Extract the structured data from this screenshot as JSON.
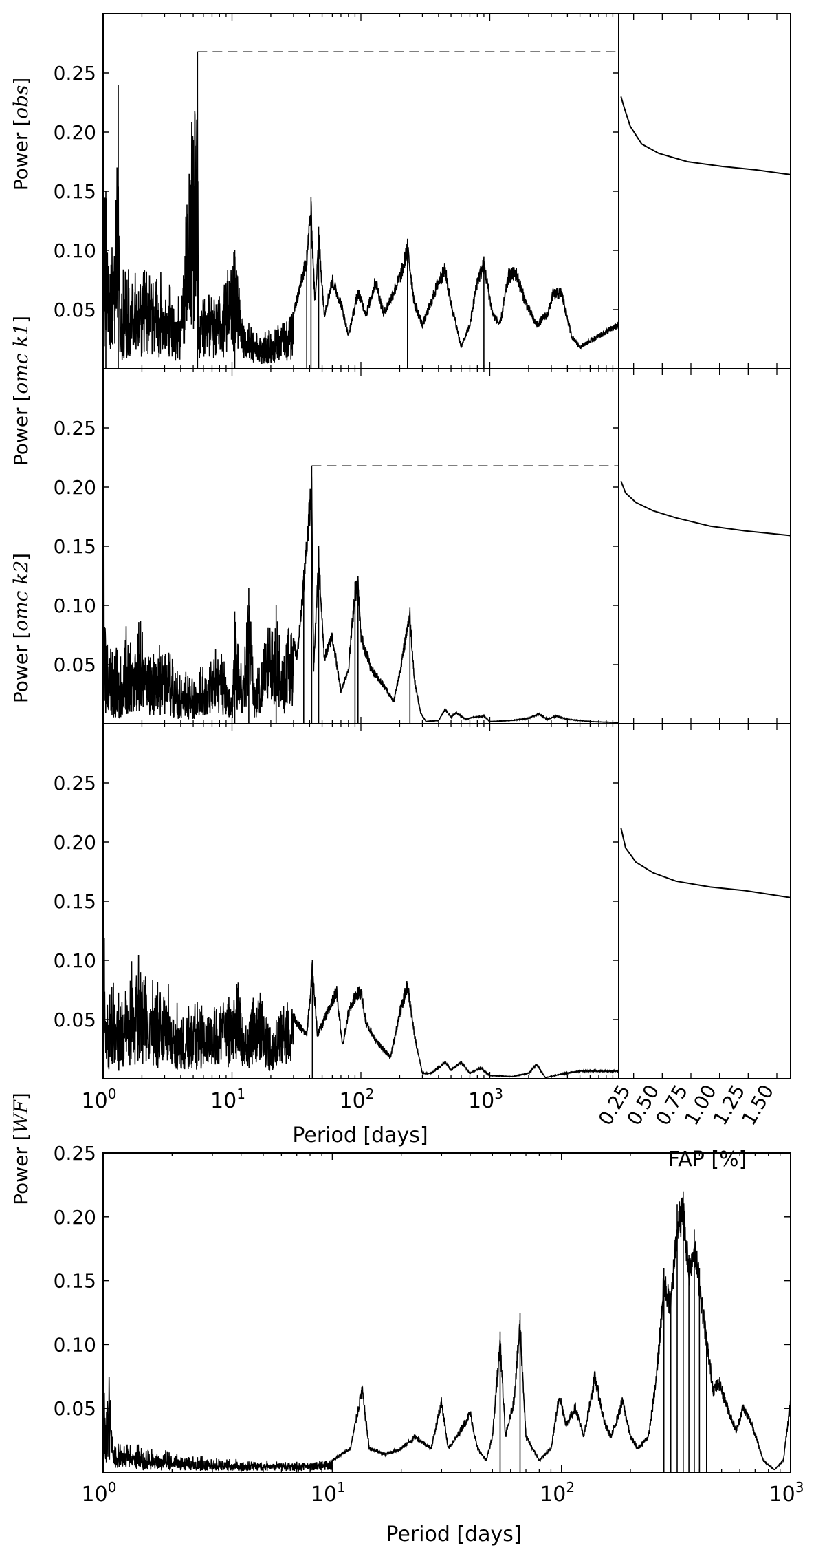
{
  "figure": {
    "x_tick_base": "10",
    "x_tick_exponents": [
      "0",
      "1",
      "2",
      "3"
    ],
    "wf_x_tick_exponents": [
      "0",
      "1",
      "2",
      "3"
    ],
    "y_ticks": [
      "0.05",
      "0.10",
      "0.15",
      "0.20",
      "0.25"
    ],
    "fap_ticks": [
      "0.25",
      "0.50",
      "0.75",
      "1.00",
      "1.25",
      "1.50"
    ],
    "xlabel_main": "Period [days]",
    "xlabel_fap": "FAP [%]",
    "xlabel_wf": "Period [days]",
    "panels": [
      {
        "ylabel_prefix": "Power ",
        "ylabel_math": "obs"
      },
      {
        "ylabel_prefix": "Power ",
        "ylabel_math": "omc k1"
      },
      {
        "ylabel_prefix": "Power ",
        "ylabel_math": "omc k2"
      },
      {
        "ylabel_prefix": "Power ",
        "ylabel_math": "WF"
      }
    ]
  },
  "chart_data": [
    {
      "type": "line",
      "panel": "obs",
      "x_scale": "log",
      "xlim": [
        1,
        10000
      ],
      "ylim": [
        0,
        0.3
      ],
      "peak": {
        "x": 5.4,
        "y": 0.268
      },
      "threshold": 0.268,
      "points": [
        [
          1.0,
          0.06
        ],
        [
          1.05,
          0.15
        ],
        [
          1.1,
          0.04
        ],
        [
          1.2,
          0.07
        ],
        [
          1.31,
          0.24
        ],
        [
          1.35,
          0.03
        ],
        [
          1.5,
          0.06
        ],
        [
          1.8,
          0.05
        ],
        [
          2.2,
          0.06
        ],
        [
          3.0,
          0.05
        ],
        [
          4.0,
          0.04
        ],
        [
          5.4,
          0.268
        ],
        [
          5.5,
          0.03
        ],
        [
          6.0,
          0.06
        ],
        [
          8.0,
          0.05
        ],
        [
          10.5,
          0.1
        ],
        [
          12,
          0.04
        ],
        [
          15,
          0.02
        ],
        [
          20,
          0.03
        ],
        [
          25,
          0.04
        ],
        [
          30,
          0.05
        ],
        [
          38,
          0.1
        ],
        [
          41,
          0.145
        ],
        [
          44,
          0.06
        ],
        [
          47,
          0.12
        ],
        [
          52,
          0.05
        ],
        [
          60,
          0.08
        ],
        [
          70,
          0.06
        ],
        [
          80,
          0.03
        ],
        [
          95,
          0.07
        ],
        [
          110,
          0.05
        ],
        [
          130,
          0.08
        ],
        [
          150,
          0.05
        ],
        [
          180,
          0.07
        ],
        [
          210,
          0.09
        ],
        [
          230,
          0.11
        ],
        [
          260,
          0.06
        ],
        [
          300,
          0.04
        ],
        [
          350,
          0.06
        ],
        [
          400,
          0.08
        ],
        [
          450,
          0.09
        ],
        [
          500,
          0.06
        ],
        [
          600,
          0.02
        ],
        [
          700,
          0.04
        ],
        [
          800,
          0.08
        ],
        [
          900,
          0.095
        ],
        [
          1050,
          0.05
        ],
        [
          1200,
          0.04
        ],
        [
          1400,
          0.085
        ],
        [
          1600,
          0.087
        ],
        [
          1900,
          0.06
        ],
        [
          2300,
          0.04
        ],
        [
          2800,
          0.05
        ],
        [
          3100,
          0.068
        ],
        [
          3600,
          0.069
        ],
        [
          4300,
          0.03
        ],
        [
          5000,
          0.02
        ],
        [
          7000,
          0.03
        ],
        [
          10000,
          0.04
        ]
      ]
    },
    {
      "type": "line",
      "panel": "omc k1",
      "x_scale": "log",
      "xlim": [
        1,
        10000
      ],
      "ylim": [
        0,
        0.3
      ],
      "peak": {
        "x": 41.5,
        "y": 0.218
      },
      "threshold": 0.218,
      "points": [
        [
          1.0,
          0.18
        ],
        [
          1.05,
          0.05
        ],
        [
          1.3,
          0.02
        ],
        [
          1.5,
          0.05
        ],
        [
          2.0,
          0.06
        ],
        [
          2.5,
          0.04
        ],
        [
          3.0,
          0.05
        ],
        [
          4.0,
          0.02
        ],
        [
          6.0,
          0.03
        ],
        [
          8.0,
          0.06
        ],
        [
          10.0,
          0.02
        ],
        [
          10.5,
          0.095
        ],
        [
          12,
          0.04
        ],
        [
          13.5,
          0.115
        ],
        [
          15,
          0.03
        ],
        [
          18,
          0.07
        ],
        [
          22,
          0.1
        ],
        [
          25,
          0.05
        ],
        [
          28,
          0.09
        ],
        [
          32,
          0.06
        ],
        [
          36,
          0.13
        ],
        [
          41.5,
          0.218
        ],
        [
          43,
          0.05
        ],
        [
          47,
          0.15
        ],
        [
          52,
          0.06
        ],
        [
          60,
          0.08
        ],
        [
          70,
          0.03
        ],
        [
          80,
          0.05
        ],
        [
          90,
          0.12
        ],
        [
          95,
          0.125
        ],
        [
          100,
          0.08
        ],
        [
          120,
          0.05
        ],
        [
          140,
          0.04
        ],
        [
          160,
          0.03
        ],
        [
          180,
          0.02
        ],
        [
          210,
          0.06
        ],
        [
          230,
          0.09
        ],
        [
          240,
          0.098
        ],
        [
          260,
          0.04
        ],
        [
          290,
          0.01
        ],
        [
          320,
          0.002
        ],
        [
          400,
          0.003
        ],
        [
          450,
          0.013
        ],
        [
          500,
          0.006
        ],
        [
          550,
          0.01
        ],
        [
          650,
          0.004
        ],
        [
          750,
          0.006
        ],
        [
          900,
          0.007
        ],
        [
          1000,
          0.002
        ],
        [
          1500,
          0.003
        ],
        [
          2000,
          0.005
        ],
        [
          2400,
          0.009
        ],
        [
          2800,
          0.004
        ],
        [
          3300,
          0.007
        ],
        [
          4000,
          0.004
        ],
        [
          6000,
          0.002
        ],
        [
          10000,
          0.001
        ]
      ]
    },
    {
      "type": "line",
      "panel": "omc k2",
      "x_scale": "log",
      "xlim": [
        1,
        10000
      ],
      "ylim": [
        0,
        0.3
      ],
      "points": [
        [
          1.0,
          0.12
        ],
        [
          1.05,
          0.05
        ],
        [
          1.3,
          0.04
        ],
        [
          1.6,
          0.06
        ],
        [
          2.0,
          0.08
        ],
        [
          2.5,
          0.05
        ],
        [
          3.0,
          0.06
        ],
        [
          4.0,
          0.04
        ],
        [
          6.0,
          0.05
        ],
        [
          10,
          0.06
        ],
        [
          11,
          0.085
        ],
        [
          13,
          0.03
        ],
        [
          15,
          0.08
        ],
        [
          20,
          0.04
        ],
        [
          27,
          0.07
        ],
        [
          32,
          0.05
        ],
        [
          38,
          0.04
        ],
        [
          42,
          0.1
        ],
        [
          46,
          0.04
        ],
        [
          55,
          0.06
        ],
        [
          65,
          0.08
        ],
        [
          72,
          0.03
        ],
        [
          80,
          0.06
        ],
        [
          90,
          0.075
        ],
        [
          100,
          0.08
        ],
        [
          110,
          0.05
        ],
        [
          140,
          0.03
        ],
        [
          170,
          0.02
        ],
        [
          200,
          0.06
        ],
        [
          230,
          0.085
        ],
        [
          260,
          0.04
        ],
        [
          300,
          0.005
        ],
        [
          350,
          0.005
        ],
        [
          400,
          0.01
        ],
        [
          450,
          0.015
        ],
        [
          500,
          0.008
        ],
        [
          600,
          0.015
        ],
        [
          700,
          0.005
        ],
        [
          850,
          0.01
        ],
        [
          1000,
          0.003
        ],
        [
          1500,
          0.002
        ],
        [
          2000,
          0.005
        ],
        [
          2300,
          0.013
        ],
        [
          2700,
          0.001
        ],
        [
          3500,
          0.004
        ],
        [
          5000,
          0.007
        ],
        [
          10000,
          0.007
        ]
      ]
    },
    {
      "type": "line",
      "panel": "WF",
      "x_scale": "log",
      "xlim": [
        1,
        1000
      ],
      "ylim": [
        0,
        0.25
      ],
      "points": [
        [
          1.0,
          0.12
        ],
        [
          1.02,
          0.04
        ],
        [
          1.06,
          0.07
        ],
        [
          1.1,
          0.02
        ],
        [
          1.3,
          0.015
        ],
        [
          1.6,
          0.01
        ],
        [
          2,
          0.008
        ],
        [
          3,
          0.006
        ],
        [
          5,
          0.006
        ],
        [
          8,
          0.007
        ],
        [
          10,
          0.01
        ],
        [
          12,
          0.02
        ],
        [
          13.5,
          0.07
        ],
        [
          14.5,
          0.02
        ],
        [
          17,
          0.015
        ],
        [
          20,
          0.02
        ],
        [
          23,
          0.03
        ],
        [
          27,
          0.02
        ],
        [
          30,
          0.06
        ],
        [
          32,
          0.02
        ],
        [
          35,
          0.03
        ],
        [
          40,
          0.05
        ],
        [
          43,
          0.02
        ],
        [
          47,
          0.01
        ],
        [
          50,
          0.03
        ],
        [
          54,
          0.11
        ],
        [
          57,
          0.03
        ],
        [
          62,
          0.06
        ],
        [
          66,
          0.125
        ],
        [
          70,
          0.03
        ],
        [
          80,
          0.01
        ],
        [
          90,
          0.02
        ],
        [
          98,
          0.065
        ],
        [
          105,
          0.04
        ],
        [
          115,
          0.055
        ],
        [
          125,
          0.03
        ],
        [
          140,
          0.08
        ],
        [
          155,
          0.04
        ],
        [
          165,
          0.03
        ],
        [
          185,
          0.06
        ],
        [
          200,
          0.03
        ],
        [
          215,
          0.02
        ],
        [
          240,
          0.03
        ],
        [
          260,
          0.08
        ],
        [
          280,
          0.16
        ],
        [
          300,
          0.14
        ],
        [
          320,
          0.21
        ],
        [
          340,
          0.22
        ],
        [
          360,
          0.17
        ],
        [
          380,
          0.19
        ],
        [
          400,
          0.16
        ],
        [
          430,
          0.11
        ],
        [
          460,
          0.07
        ],
        [
          490,
          0.075
        ],
        [
          540,
          0.05
        ],
        [
          580,
          0.035
        ],
        [
          620,
          0.055
        ],
        [
          680,
          0.04
        ],
        [
          760,
          0.01
        ],
        [
          850,
          0.002
        ],
        [
          930,
          0.01
        ],
        [
          1000,
          0.06
        ]
      ]
    },
    {
      "type": "line",
      "panel": "FAP obs",
      "xlim": [
        0,
        1.5
      ],
      "ylim": [
        0,
        0.3
      ],
      "points": [
        [
          0.02,
          0.23
        ],
        [
          0.05,
          0.22
        ],
        [
          0.1,
          0.205
        ],
        [
          0.2,
          0.19
        ],
        [
          0.35,
          0.182
        ],
        [
          0.6,
          0.175
        ],
        [
          0.9,
          0.171
        ],
        [
          1.2,
          0.168
        ],
        [
          1.5,
          0.164
        ]
      ]
    },
    {
      "type": "line",
      "panel": "FAP omc k1",
      "xlim": [
        0,
        1.5
      ],
      "ylim": [
        0,
        0.3
      ],
      "points": [
        [
          0.02,
          0.205
        ],
        [
          0.06,
          0.195
        ],
        [
          0.15,
          0.187
        ],
        [
          0.3,
          0.18
        ],
        [
          0.5,
          0.174
        ],
        [
          0.8,
          0.167
        ],
        [
          1.1,
          0.163
        ],
        [
          1.5,
          0.159
        ]
      ]
    },
    {
      "type": "line",
      "panel": "FAP omc k2",
      "xlim": [
        0,
        1.5
      ],
      "ylim": [
        0,
        0.3
      ],
      "points": [
        [
          0.02,
          0.212
        ],
        [
          0.06,
          0.195
        ],
        [
          0.15,
          0.183
        ],
        [
          0.3,
          0.174
        ],
        [
          0.5,
          0.167
        ],
        [
          0.8,
          0.162
        ],
        [
          1.1,
          0.159
        ],
        [
          1.5,
          0.153
        ]
      ]
    }
  ]
}
